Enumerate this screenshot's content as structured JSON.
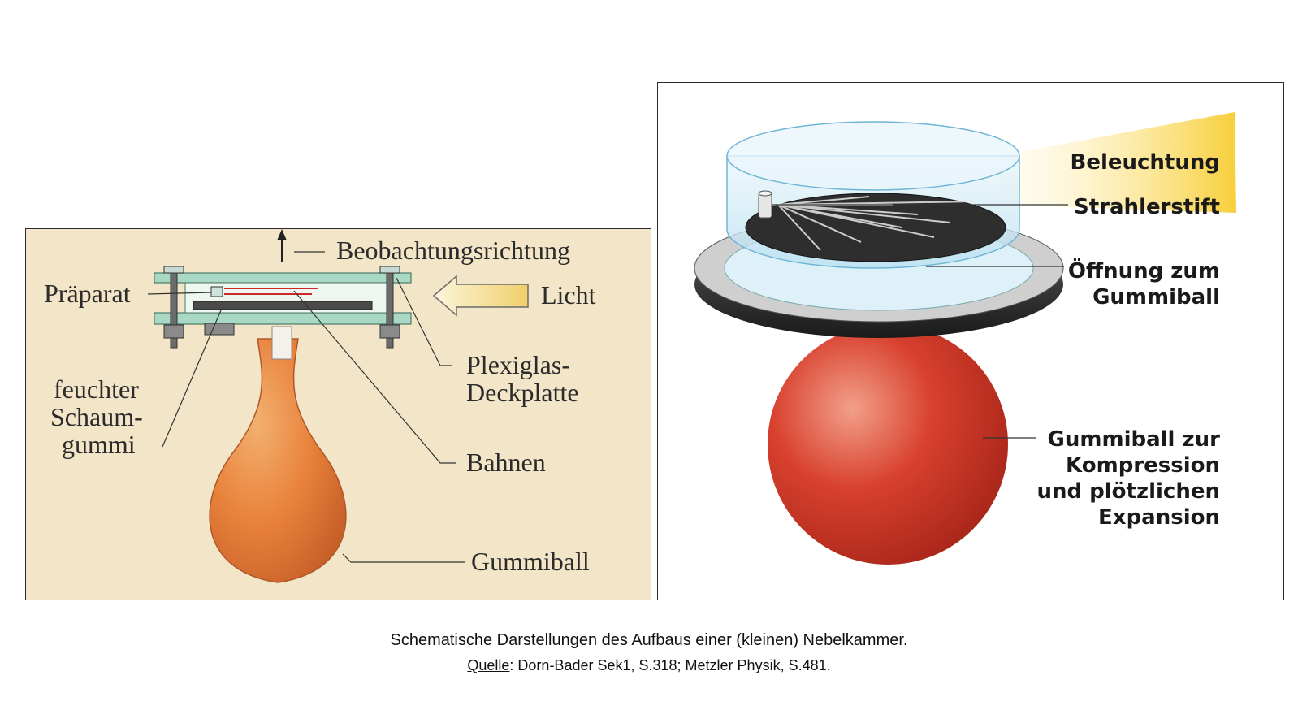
{
  "left_diagram": {
    "labels": {
      "observation": "Beobachtungsrichtung",
      "preparation": "Präparat",
      "light": "Licht",
      "plexiglass_1": "Plexiglas-",
      "plexiglass_2": "Deckplatte",
      "foam_1": "feuchter",
      "foam_2": "Schaum-",
      "foam_3": "gummi",
      "tracks": "Bahnen",
      "rubber_ball": "Gummiball"
    }
  },
  "right_diagram": {
    "labels": {
      "illumination": "Beleuchtung",
      "source_pin": "Strahlerstift",
      "opening_1": "Öffnung zum",
      "opening_2": "Gummiball",
      "ball_1": "Gummiball zur",
      "ball_2": "Kompression",
      "ball_3": "und plötzlichen",
      "ball_4": "Expansion"
    }
  },
  "caption": {
    "text": "Schematische Darstellungen des Aufbaus einer (kleinen) Nebelkammer.",
    "source_label": "Quelle",
    "source_text": ": Dorn-Bader Sek1, S.318; Metzler Physik, S.481."
  },
  "colors": {
    "left_background": "#f3e6c8",
    "bulb_orange": "#e8813a",
    "plexiglass_green": "#a9d8c4",
    "ball_red": "#d8402e",
    "light_beam_yellow": "#f7d44a",
    "chamber_blue": "#cfeaf5"
  }
}
